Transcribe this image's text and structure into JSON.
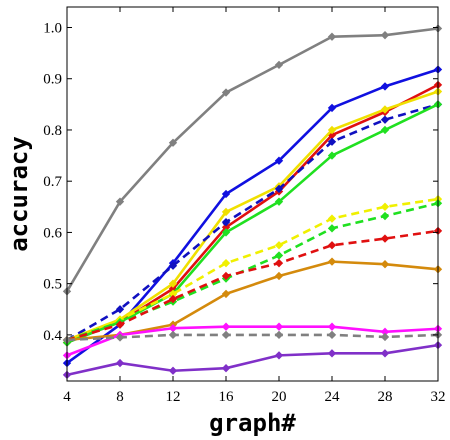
{
  "chart_data": {
    "type": "line",
    "xlabel": "graph#",
    "ylabel": "accuracy",
    "x": [
      4,
      8,
      12,
      16,
      20,
      24,
      28,
      32
    ],
    "xlim": [
      4,
      32
    ],
    "ylim": [
      0.31,
      1.04
    ],
    "xticks": [
      "4",
      "8",
      "12",
      "16",
      "20",
      "24",
      "28",
      "32"
    ],
    "yticks": [
      "0.4",
      "0.5",
      "0.6",
      "0.7",
      "0.8",
      "0.9",
      "1.0"
    ],
    "ytick_values": [
      0.4,
      0.5,
      0.6,
      0.7,
      0.8,
      0.9,
      1.0
    ],
    "grid": false,
    "legend": "none",
    "series": [
      {
        "color": "#808080",
        "dash": "solid",
        "values": [
          0.485,
          0.66,
          0.775,
          0.873,
          0.927,
          0.982,
          0.985,
          0.998
        ]
      },
      {
        "color": "#1010e0",
        "dash": "solid",
        "values": [
          0.345,
          0.42,
          0.54,
          0.675,
          0.74,
          0.843,
          0.885,
          0.918
        ]
      },
      {
        "color": "#e01010",
        "dash": "solid",
        "values": [
          0.385,
          0.425,
          0.49,
          0.61,
          0.68,
          0.79,
          0.835,
          0.888
        ]
      },
      {
        "color": "#f0e000",
        "dash": "solid",
        "values": [
          0.39,
          0.43,
          0.5,
          0.64,
          0.69,
          0.8,
          0.84,
          0.875
        ]
      },
      {
        "color": "#1010c0",
        "dash": "dashed",
        "values": [
          0.39,
          0.45,
          0.535,
          0.62,
          0.685,
          0.777,
          0.82,
          0.85
        ]
      },
      {
        "color": "#20e020",
        "dash": "solid",
        "values": [
          0.385,
          0.425,
          0.48,
          0.6,
          0.66,
          0.75,
          0.8,
          0.85
        ]
      },
      {
        "color": "#f0f000",
        "dash": "dashed",
        "values": [
          0.39,
          0.43,
          0.48,
          0.54,
          0.575,
          0.627,
          0.65,
          0.665
        ]
      },
      {
        "color": "#20e020",
        "dash": "dashed",
        "values": [
          0.39,
          0.425,
          0.465,
          0.51,
          0.555,
          0.608,
          0.632,
          0.657
        ]
      },
      {
        "color": "#e01010",
        "dash": "dashed",
        "values": [
          0.39,
          0.42,
          0.47,
          0.515,
          0.54,
          0.575,
          0.588,
          0.603
        ]
      },
      {
        "color": "#d48a0c",
        "dash": "solid",
        "values": [
          0.39,
          0.4,
          0.42,
          0.48,
          0.515,
          0.543,
          0.538,
          0.528
        ]
      },
      {
        "color": "#ff10ff",
        "dash": "solid",
        "values": [
          0.36,
          0.4,
          0.413,
          0.416,
          0.416,
          0.416,
          0.406,
          0.412
        ]
      },
      {
        "color": "#808080",
        "dash": "dashed",
        "values": [
          0.39,
          0.395,
          0.4,
          0.4,
          0.4,
          0.4,
          0.396,
          0.4
        ]
      },
      {
        "color": "#8030c8",
        "dash": "solid",
        "values": [
          0.322,
          0.345,
          0.33,
          0.335,
          0.36,
          0.364,
          0.364,
          0.38
        ]
      }
    ]
  }
}
